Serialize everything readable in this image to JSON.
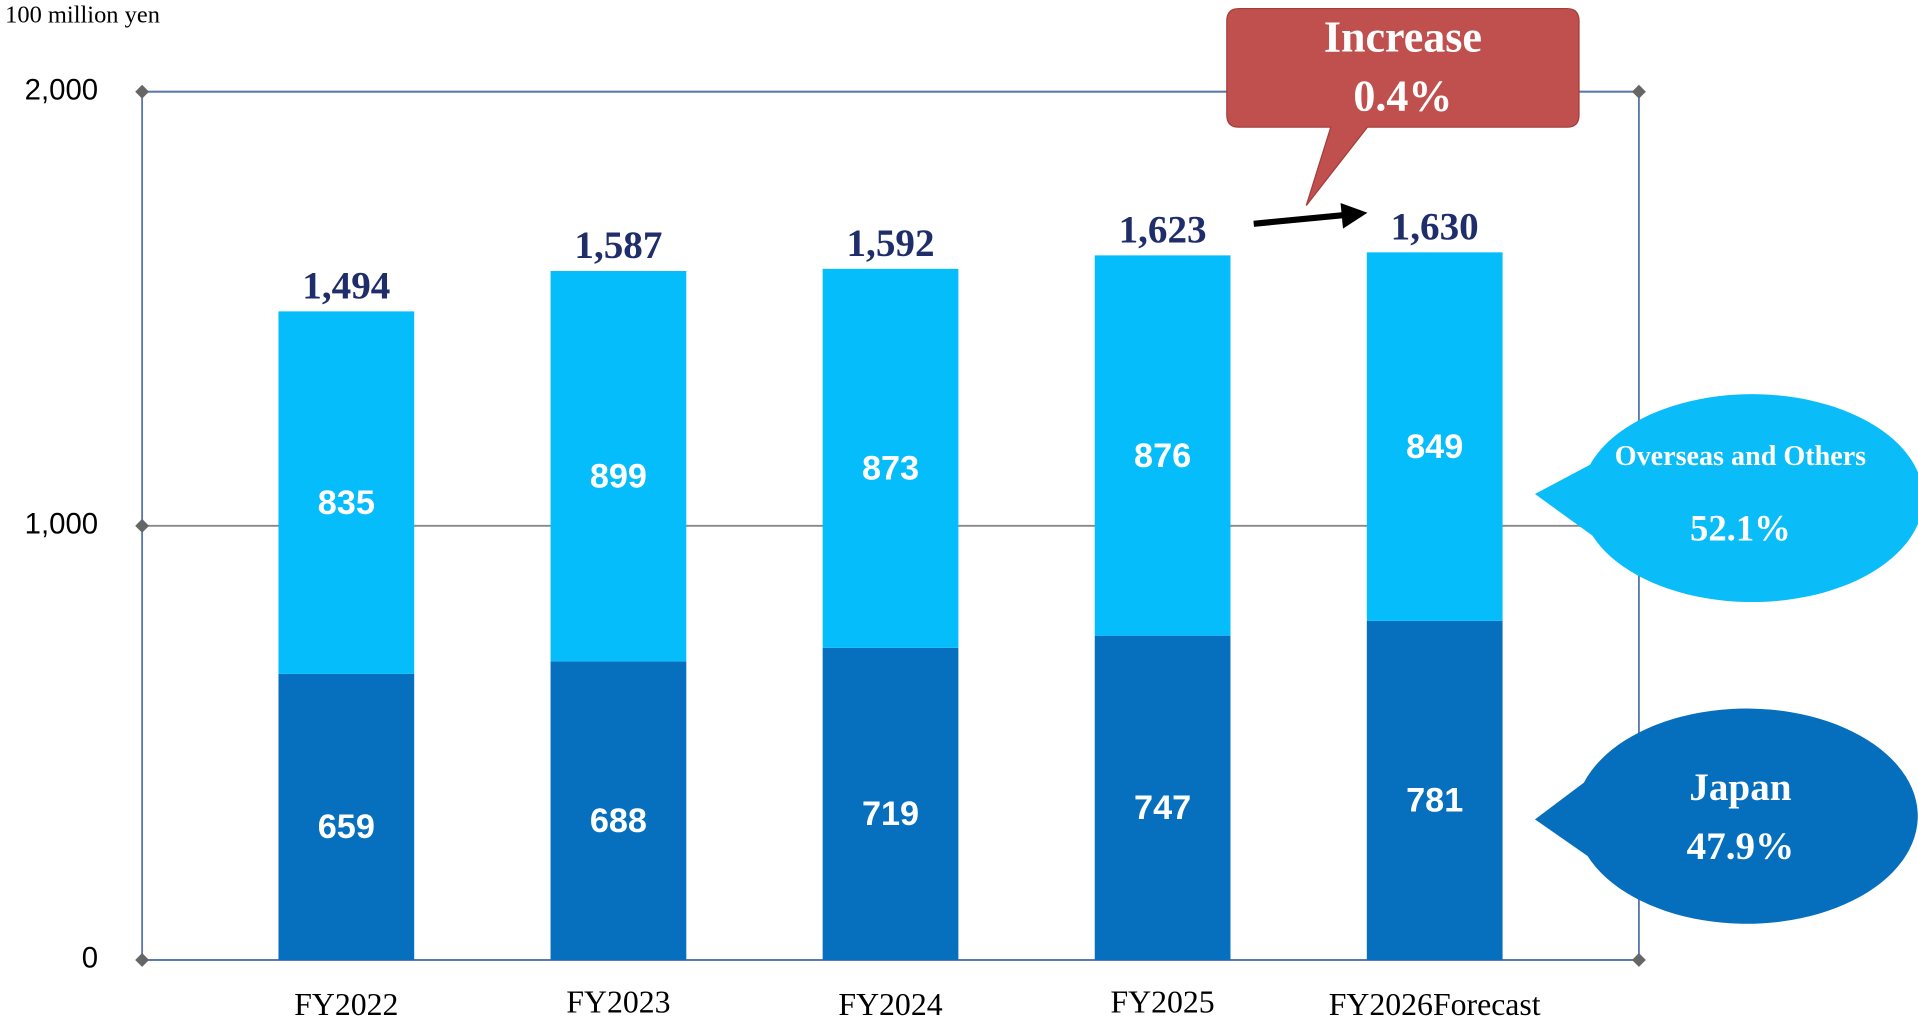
{
  "chart_data": {
    "type": "stacked_bar",
    "unit_label": "100 million yen",
    "categories": [
      "FY2022",
      "FY2023",
      "FY2024",
      "FY2025",
      "FY2026Forecast"
    ],
    "series": [
      {
        "name": "Japan",
        "color": "#0670be",
        "values": [
          659,
          688,
          719,
          747,
          781
        ]
      },
      {
        "name": "Overseas and Others",
        "color": "#05bdfb",
        "values": [
          835,
          899,
          873,
          876,
          849
        ]
      }
    ],
    "totals": {
      "values": [
        1494,
        1587,
        1592,
        1623,
        1630
      ],
      "value_labels": [
        "1,494",
        "1,587",
        "1,592",
        "1,623",
        "1,630"
      ]
    },
    "ylim": [
      0,
      2000
    ],
    "yticks": [
      0,
      {
        "value": 1000,
        "label": "1,000"
      },
      {
        "value": 2000,
        "label": "2,000"
      }
    ],
    "annotations": {
      "increase": "Increase",
      "increase_value": "0.4%",
      "overseas_share": "52.1%",
      "japan_share": "47.9%"
    }
  }
}
